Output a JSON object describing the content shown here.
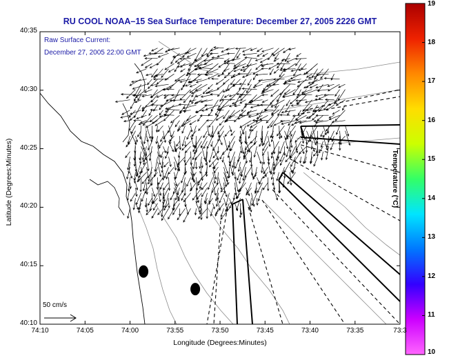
{
  "chart_data": {
    "type": "vector-map",
    "title": "RU COOL   NOAA–15  Sea Surface Temperature:  December 27, 2005 2226 GMT",
    "subtitle_lines": [
      "Raw Surface Current:",
      "December 27, 2005 22:00 GMT"
    ],
    "xlabel": "Longitude (Degrees:Minutes)",
    "ylabel": "Latitude (Degrees:Minutes)",
    "x_ticks": [
      {
        "value": -74.1667,
        "label": "74:10"
      },
      {
        "value": -74.0833,
        "label": "74:05"
      },
      {
        "value": -74.0,
        "label": "74:00"
      },
      {
        "value": -73.9167,
        "label": "73:55"
      },
      {
        "value": -73.8333,
        "label": "73:50"
      },
      {
        "value": -73.75,
        "label": "73:45"
      },
      {
        "value": -73.6667,
        "label": "73:40"
      },
      {
        "value": -73.5833,
        "label": "73:35"
      },
      {
        "value": -73.5,
        "label": "73:3"
      }
    ],
    "y_ticks": [
      {
        "value": 40.1667,
        "label": "40:10"
      },
      {
        "value": 40.25,
        "label": "40:15"
      },
      {
        "value": 40.3333,
        "label": "40:20"
      },
      {
        "value": 40.4167,
        "label": "40:25"
      },
      {
        "value": 40.5,
        "label": "40:30"
      },
      {
        "value": 40.5833,
        "label": "40:35"
      }
    ],
    "xlim": [
      -74.1667,
      -73.5
    ],
    "ylim": [
      40.1667,
      40.5833
    ],
    "scale_vector": {
      "label": "50 cm/s",
      "speed_cm_s": 50
    },
    "colorbar": {
      "title": "Temperature (°C)",
      "min": 10,
      "max": 19,
      "ticks": [
        "10",
        "11",
        "12",
        "13",
        "14",
        "15",
        "16",
        "17",
        "18",
        "19"
      ],
      "colors": [
        "#ff66ff",
        "#cc00ff",
        "#3300ff",
        "#0077ff",
        "#00e5ff",
        "#33ff66",
        "#ccff00",
        "#ffdd00",
        "#ff8800",
        "#ee2200",
        "#aa0000"
      ]
    },
    "current_field": {
      "lon_range": [
        -74.0,
        -73.6
      ],
      "lat_range": [
        40.33,
        40.56
      ],
      "prevailing_direction": "south / south-west",
      "typical_speed_cm_s": 35
    },
    "markers": [
      {
        "type": "buoy",
        "lon": -73.975,
        "lat": 40.2417
      },
      {
        "type": "buoy",
        "lon": -73.8792,
        "lat": 40.2167
      }
    ]
  }
}
